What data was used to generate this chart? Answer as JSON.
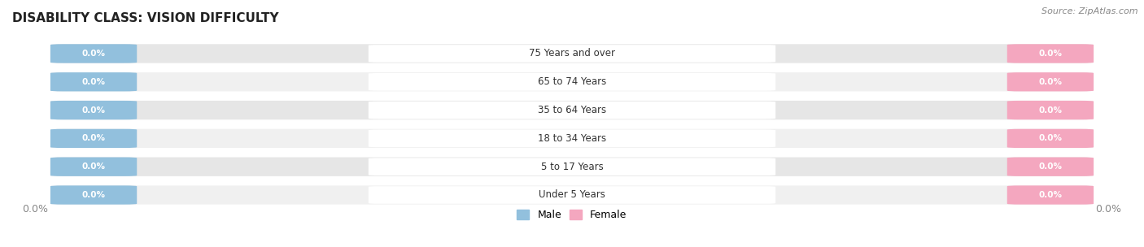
{
  "title": "DISABILITY CLASS: VISION DIFFICULTY",
  "source": "Source: ZipAtlas.com",
  "categories": [
    "Under 5 Years",
    "5 to 17 Years",
    "18 to 34 Years",
    "35 to 64 Years",
    "65 to 74 Years",
    "75 Years and over"
  ],
  "male_values": [
    0.0,
    0.0,
    0.0,
    0.0,
    0.0,
    0.0
  ],
  "female_values": [
    0.0,
    0.0,
    0.0,
    0.0,
    0.0,
    0.0
  ],
  "male_color": "#92c0dd",
  "female_color": "#f4a7bf",
  "row_bg_color_1": "#f0f0f0",
  "row_bg_color_2": "#e6e6e6",
  "title_color": "#222222",
  "label_color": "#333333",
  "value_text_color": "#ffffff",
  "axis_label_color": "#888888",
  "figsize": [
    14.06,
    3.04
  ],
  "dpi": 100
}
